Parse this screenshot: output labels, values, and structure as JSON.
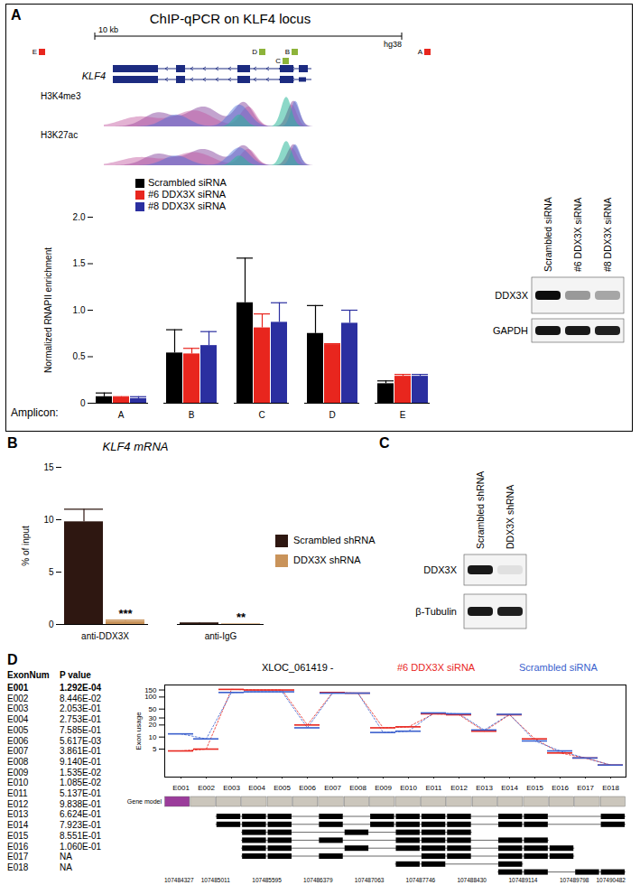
{
  "figure": {
    "A": {
      "label": "A",
      "title": "ChIP-qPCR on KLF4 locus",
      "scale_bar": "10 kb",
      "assembly": "hg38",
      "gene": "KLF4",
      "tracks": [
        "H3K4me3",
        "H3K27ac"
      ],
      "amplicons": [
        {
          "name": "E",
          "color": "#e8261e"
        },
        {
          "name": "D",
          "color": "#8db33a"
        },
        {
          "name": "B",
          "color": "#8db33a"
        },
        {
          "name": "C",
          "color": "#8db33a"
        },
        {
          "name": "A",
          "color": "#e8261e"
        }
      ],
      "blot": {
        "lanes": [
          "Scrambled siRNA",
          "#6 DDX3X siRNA",
          "#8 DDX3X siRNA"
        ],
        "rows": [
          "DDX3X",
          "GAPDH"
        ]
      }
    },
    "B": {
      "label": "B"
    },
    "C": {
      "label": "C",
      "blot": {
        "lanes": [
          "Scrambled shRNA",
          "DDX3X shRNA"
        ],
        "rows": [
          "DDX3X",
          "β-Tubulin"
        ]
      }
    },
    "D": {
      "label": "D",
      "table": {
        "header": [
          "ExonNum",
          "P value"
        ],
        "rows": [
          {
            "exon": "E001",
            "p": "1.292E-04",
            "bold": true
          },
          {
            "exon": "E002",
            "p": "8.446E-02"
          },
          {
            "exon": "E003",
            "p": "2.053E-01"
          },
          {
            "exon": "E004",
            "p": "2.753E-01"
          },
          {
            "exon": "E005",
            "p": "7.585E-01"
          },
          {
            "exon": "E006",
            "p": "5.617E-03"
          },
          {
            "exon": "E007",
            "p": "3.861E-01"
          },
          {
            "exon": "E008",
            "p": "9.140E-01"
          },
          {
            "exon": "E009",
            "p": "1.535E-02"
          },
          {
            "exon": "E010",
            "p": "1.085E-02"
          },
          {
            "exon": "E011",
            "p": "5.137E-01"
          },
          {
            "exon": "E012",
            "p": "9.838E-01"
          },
          {
            "exon": "E013",
            "p": "6.624E-01"
          },
          {
            "exon": "E014",
            "p": "7.923E-01"
          },
          {
            "exon": "E015",
            "p": "8.551E-01"
          },
          {
            "exon": "E016",
            "p": "1.060E-01"
          },
          {
            "exon": "E017",
            "p": "NA"
          },
          {
            "exon": "E018",
            "p": "NA"
          }
        ]
      },
      "gene_model": "Gene model",
      "transcripts": [
        [
          "E003",
          "E004",
          "E005",
          "E007",
          "E009",
          "E010",
          "E011",
          "E012",
          "E014",
          "E015",
          "E018"
        ],
        [
          "E003",
          "E004",
          "E005",
          "E007",
          "E009",
          "E010",
          "E011",
          "E012",
          "E014",
          "E015",
          "E018"
        ],
        [
          "E004",
          "E005",
          "E008",
          "E010",
          "E011",
          "E012"
        ],
        [
          "E004",
          "E005",
          "E007",
          "E010",
          "E011",
          "E012",
          "E014",
          "E015"
        ],
        [
          "E004",
          "E005",
          "E008",
          "E010",
          "E011",
          "E012",
          "E014",
          "E015",
          "E016"
        ],
        [
          "E004",
          "E005",
          "E007",
          "E011",
          "E012",
          "E014",
          "E015",
          "E016"
        ],
        [
          "E010",
          "E011",
          "E014"
        ],
        [
          "E014",
          "E015",
          "E017",
          "E018"
        ]
      ],
      "coordinates": [
        107484327,
        107485011,
        107485595,
        107486379,
        107487063,
        107487746,
        107488430,
        107489114,
        107489798,
        107490482
      ]
    }
  },
  "chart_data": [
    {
      "type": "bar",
      "x_label": "Amplicon:",
      "y_label": "Normalized RNAPII enrichment",
      "categories": [
        "A",
        "B",
        "C",
        "D",
        "E"
      ],
      "series": [
        {
          "name": "Scrambled siRNA",
          "color": "#000000",
          "values": [
            0.07,
            0.54,
            1.08,
            0.75,
            0.21
          ],
          "errors": [
            0.04,
            0.25,
            0.48,
            0.3,
            0.03
          ]
        },
        {
          "name": "#6 DDX3X siRNA",
          "color": "#e8261e",
          "values": [
            0.06,
            0.53,
            0.81,
            0.63,
            0.29
          ],
          "errors": [
            0.01,
            0.06,
            0.15,
            0.01,
            0.02
          ]
        },
        {
          "name": "#8 DDX3X siRNA",
          "color": "#2b2fa0",
          "values": [
            0.05,
            0.62,
            0.87,
            0.86,
            0.29
          ],
          "errors": [
            0.02,
            0.15,
            0.21,
            0.14,
            0.02
          ]
        }
      ],
      "ylim": [
        0,
        2
      ],
      "yticks": [
        0,
        0.5,
        {
          "value": 1,
          "label": "1.0"
        },
        1.5,
        {
          "value": 2,
          "label": "2.0"
        }
      ]
    },
    {
      "type": "bar",
      "title": "KLF4 mRNA",
      "y_label": "% of input",
      "categories": [
        "anti-DDX3X",
        "anti-IgG"
      ],
      "series": [
        {
          "name": "Scrambled shRNA",
          "color": "#2e1711",
          "values": [
            9.8,
            0.1
          ],
          "errors": [
            1.2,
            0.05
          ]
        },
        {
          "name": "DDX3X shRNA",
          "color": "#c9935a",
          "values": [
            0.3,
            0.02
          ],
          "errors": [
            0.12,
            0.01
          ],
          "annotations": [
            "***",
            "**"
          ]
        }
      ],
      "ylim": [
        0,
        15
      ],
      "yticks": [
        0,
        5,
        10,
        15
      ]
    },
    {
      "type": "line",
      "title": "XLOC_061419 -",
      "y_label": "Exon usage",
      "log": "y",
      "categories": [
        "E001",
        "E002",
        "E003",
        "E004",
        "E005",
        "E006",
        "E007",
        "E008",
        "E009",
        "E010",
        "E011",
        "E012",
        "E013",
        "E014",
        "E015",
        "E016",
        "E017",
        "E018"
      ],
      "series": [
        {
          "name": "#6 DDX3X siRNA",
          "color": "#e8261e",
          "values": [
            4.5,
            5,
            155,
            150,
            150,
            20,
            130,
            125,
            17,
            18,
            38,
            36,
            14,
            36,
            9,
            4,
            3,
            2
          ]
        },
        {
          "name": "Scrambled siRNA",
          "color": "#3a5fcd",
          "values": [
            12,
            9,
            130,
            135,
            135,
            17,
            125,
            125,
            13,
            14,
            40,
            38,
            15,
            37,
            8,
            4.5,
            3,
            2
          ]
        }
      ],
      "ylim": [
        1,
        200
      ],
      "yticks": [
        5,
        10,
        20,
        30,
        50,
        100,
        150
      ]
    }
  ]
}
